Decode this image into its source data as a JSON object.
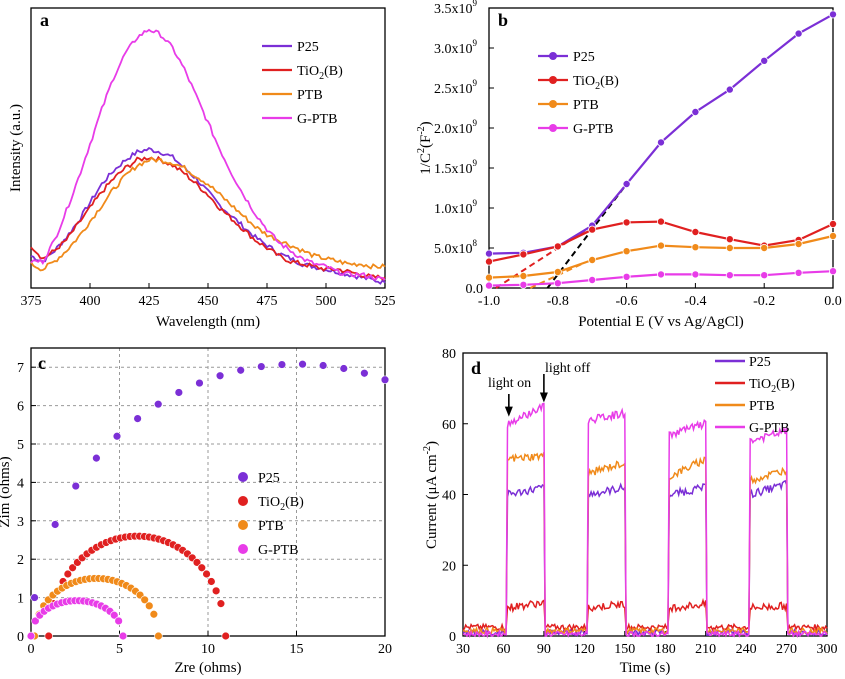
{
  "colors": {
    "P25": "#7b2fd6",
    "TiO2B": "#e02020",
    "PTB": "#f08a1a",
    "GPTB": "#e83ce8",
    "fit": "#000000"
  },
  "chart_data": [
    {
      "panel": "a",
      "type": "line",
      "xlabel": "Wavelength (nm)",
      "ylabel": "Intensity (a.u.)",
      "xlim": [
        375,
        525
      ],
      "ylim": [
        0,
        1
      ],
      "xticks": [
        "375",
        "400",
        "425",
        "450",
        "475",
        "500",
        "525"
      ],
      "legend_position": "top-right",
      "series": [
        {
          "name": "P25",
          "label_parts": [
            "P25"
          ],
          "color_key": "P25",
          "x": [
            375,
            380,
            385,
            390,
            395,
            400,
            405,
            410,
            415,
            420,
            425,
            430,
            435,
            440,
            445,
            450,
            455,
            460,
            465,
            470,
            475,
            480,
            485,
            490,
            495,
            500,
            505,
            510,
            515,
            520,
            525
          ],
          "y": [
            0.12,
            0.1,
            0.14,
            0.19,
            0.25,
            0.32,
            0.39,
            0.44,
            0.48,
            0.51,
            0.52,
            0.51,
            0.49,
            0.45,
            0.41,
            0.36,
            0.31,
            0.27,
            0.23,
            0.19,
            0.16,
            0.13,
            0.11,
            0.09,
            0.08,
            0.07,
            0.06,
            0.05,
            0.04,
            0.03,
            0.02
          ]
        },
        {
          "name": "TiO2(B)",
          "label_parts": [
            "TiO",
            "2",
            "(B)"
          ],
          "color_key": "TiO2B",
          "x": [
            375,
            380,
            385,
            390,
            395,
            400,
            405,
            410,
            415,
            420,
            425,
            430,
            435,
            440,
            445,
            450,
            455,
            460,
            465,
            470,
            475,
            480,
            485,
            490,
            495,
            500,
            505,
            510,
            515,
            520,
            525
          ],
          "y": [
            0.16,
            0.11,
            0.14,
            0.18,
            0.24,
            0.3,
            0.36,
            0.41,
            0.45,
            0.48,
            0.49,
            0.48,
            0.46,
            0.43,
            0.39,
            0.35,
            0.3,
            0.26,
            0.22,
            0.18,
            0.15,
            0.12,
            0.1,
            0.09,
            0.08,
            0.07,
            0.07,
            0.06,
            0.05,
            0.04,
            0.04
          ]
        },
        {
          "name": "PTB",
          "label_parts": [
            "PTB"
          ],
          "color_key": "PTB",
          "x": [
            375,
            380,
            385,
            390,
            395,
            400,
            405,
            410,
            415,
            420,
            425,
            430,
            435,
            440,
            445,
            450,
            455,
            460,
            465,
            470,
            475,
            480,
            485,
            490,
            495,
            500,
            505,
            510,
            515,
            520,
            525
          ],
          "y": [
            0.09,
            0.07,
            0.1,
            0.14,
            0.19,
            0.25,
            0.31,
            0.37,
            0.42,
            0.46,
            0.48,
            0.48,
            0.47,
            0.45,
            0.42,
            0.39,
            0.35,
            0.31,
            0.27,
            0.23,
            0.2,
            0.18,
            0.16,
            0.14,
            0.12,
            0.11,
            0.1,
            0.09,
            0.09,
            0.08,
            0.08
          ]
        },
        {
          "name": "G-PTB",
          "label_parts": [
            "G-PTB"
          ],
          "color_key": "GPTB",
          "x": [
            375,
            380,
            385,
            390,
            395,
            400,
            405,
            410,
            415,
            420,
            425,
            430,
            435,
            440,
            445,
            450,
            455,
            460,
            465,
            470,
            475,
            480,
            485,
            490,
            495,
            500,
            505,
            510,
            515,
            520,
            525
          ],
          "y": [
            0.1,
            0.1,
            0.18,
            0.29,
            0.41,
            0.54,
            0.67,
            0.79,
            0.88,
            0.94,
            0.97,
            0.95,
            0.9,
            0.82,
            0.72,
            0.62,
            0.52,
            0.43,
            0.35,
            0.28,
            0.22,
            0.17,
            0.14,
            0.11,
            0.09,
            0.08,
            0.06,
            0.05,
            0.05,
            0.04,
            0.03
          ]
        }
      ]
    },
    {
      "panel": "b",
      "type": "line",
      "xlabel": "Potential E (V vs Ag/AgCl)",
      "ylabel_parts": [
        "1/C",
        "2",
        "(F",
        "-2",
        ")"
      ],
      "xlim": [
        -1.0,
        0.0
      ],
      "ylim": [
        0,
        3.5
      ],
      "xticks": [
        {
          "v": -1.0,
          "t": "-1.0"
        },
        {
          "v": -0.8,
          "t": "-0.8"
        },
        {
          "v": -0.6,
          "t": "-0.6"
        },
        {
          "v": -0.4,
          "t": "-0.4"
        },
        {
          "v": -0.2,
          "t": "-0.2"
        },
        {
          "v": 0.0,
          "t": "0.0"
        }
      ],
      "yticks": [
        {
          "v": 0.0,
          "t": "0.0",
          "e": ""
        },
        {
          "v": 0.5,
          "t": "5.0x10",
          "e": "8"
        },
        {
          "v": 1.0,
          "t": "1.0x10",
          "e": "9"
        },
        {
          "v": 1.5,
          "t": "1.5x10",
          "e": "9"
        },
        {
          "v": 2.0,
          "t": "2.0x10",
          "e": "9"
        },
        {
          "v": 2.5,
          "t": "2.5x10",
          "e": "9"
        },
        {
          "v": 3.0,
          "t": "3.0x10",
          "e": "9"
        },
        {
          "v": 3.5,
          "t": "3.5x10",
          "e": "9"
        }
      ],
      "y_units_note": "values in units of 1e9 F^-2",
      "legend_position": "top-left",
      "series": [
        {
          "name": "P25",
          "label_parts": [
            "P25"
          ],
          "color_key": "P25",
          "x": [
            -1.0,
            -0.9,
            -0.8,
            -0.7,
            -0.6,
            -0.5,
            -0.4,
            -0.3,
            -0.2,
            -0.1,
            0.0
          ],
          "y": [
            0.43,
            0.44,
            0.52,
            0.78,
            1.3,
            1.82,
            2.2,
            2.48,
            2.84,
            3.18,
            3.42
          ]
        },
        {
          "name": "TiO2(B)",
          "label_parts": [
            "TiO",
            "2",
            "(B)"
          ],
          "color_key": "TiO2B",
          "x": [
            -1.0,
            -0.9,
            -0.8,
            -0.7,
            -0.6,
            -0.5,
            -0.4,
            -0.3,
            -0.2,
            -0.1,
            0.0
          ],
          "y": [
            0.33,
            0.42,
            0.52,
            0.73,
            0.82,
            0.83,
            0.7,
            0.61,
            0.53,
            0.6,
            0.8
          ]
        },
        {
          "name": "PTB",
          "label_parts": [
            "PTB"
          ],
          "color_key": "PTB",
          "x": [
            -1.0,
            -0.9,
            -0.8,
            -0.7,
            -0.6,
            -0.5,
            -0.4,
            -0.3,
            -0.2,
            -0.1,
            0.0
          ],
          "y": [
            0.13,
            0.15,
            0.2,
            0.35,
            0.46,
            0.53,
            0.51,
            0.5,
            0.5,
            0.55,
            0.65
          ]
        },
        {
          "name": "G-PTB",
          "label_parts": [
            "G-PTB"
          ],
          "color_key": "GPTB",
          "x": [
            -1.0,
            -0.9,
            -0.8,
            -0.7,
            -0.6,
            -0.5,
            -0.4,
            -0.3,
            -0.2,
            -0.1,
            0.0
          ],
          "y": [
            0.03,
            0.04,
            0.06,
            0.1,
            0.14,
            0.17,
            0.17,
            0.16,
            0.16,
            0.19,
            0.21
          ]
        }
      ],
      "fits": [
        {
          "name": "P25 fit",
          "color_key": "fit",
          "x": [
            -0.83,
            -0.6
          ],
          "y": [
            0.0,
            1.3
          ]
        },
        {
          "name": "TiO2(B) fit",
          "color_key": "TiO2B",
          "x": [
            -0.98,
            -0.72
          ],
          "y": [
            0.0,
            0.72
          ]
        },
        {
          "name": "PTB fit",
          "color_key": "PTB",
          "x": [
            -0.88,
            -0.72
          ],
          "y": [
            0.0,
            0.32
          ]
        }
      ]
    },
    {
      "panel": "c",
      "type": "scatter",
      "xlabel": "Zre (ohms)",
      "ylabel": "Zim (ohms)",
      "xlim": [
        0,
        20
      ],
      "ylim": [
        0,
        7.5
      ],
      "xticks": [
        "0",
        "5",
        "10",
        "15",
        "20"
      ],
      "yticks": [
        "0",
        "1",
        "2",
        "3",
        "4",
        "5",
        "6",
        "7"
      ],
      "grid": true,
      "legend_position": "middle",
      "series": [
        {
          "name": "P25",
          "label_parts": [
            "P25"
          ],
          "color_key": "P25",
          "model": "semicircle",
          "center": 15.0,
          "radius": 14.95,
          "height": 7.08,
          "x_from": 0.2,
          "x_to": 20.0,
          "points": 18
        },
        {
          "name": "TiO2(B)",
          "label_parts": [
            "TiO",
            "2",
            "(B)"
          ],
          "color_key": "TiO2B",
          "model": "semicircle",
          "center": 6.0,
          "radius": 5.0,
          "height": 2.6,
          "x_from": 1.0,
          "x_to": 11.0,
          "points": 38
        },
        {
          "name": "PTB",
          "label_parts": [
            "PTB"
          ],
          "color_key": "PTB",
          "model": "semicircle",
          "center": 3.7,
          "radius": 3.5,
          "height": 1.5,
          "x_from": 0.2,
          "x_to": 7.2,
          "points": 28
        },
        {
          "name": "G-PTB",
          "label_parts": [
            "G-PTB"
          ],
          "color_key": "GPTB",
          "model": "semicircle",
          "center": 2.6,
          "radius": 2.6,
          "height": 0.92,
          "x_from": 0.0,
          "x_to": 5.2,
          "points": 22
        }
      ]
    },
    {
      "panel": "d",
      "type": "line",
      "xlabel": "Time (s)",
      "ylabel_parts": [
        "Current (μA cm",
        "-2",
        ")"
      ],
      "xlim": [
        30,
        300
      ],
      "ylim": [
        0,
        80
      ],
      "xticks": [
        "30",
        "60",
        "90",
        "120",
        "150",
        "180",
        "210",
        "240",
        "270",
        "300"
      ],
      "yticks": [
        "0",
        "20",
        "40",
        "60",
        "80"
      ],
      "legend_position": "top-right",
      "annotations": [
        {
          "text": "light on",
          "arrow_x": 64,
          "arrow_y": 62
        },
        {
          "text": "light off",
          "arrow_x": 90,
          "arrow_y": 66
        }
      ],
      "light_periods": [
        [
          63,
          90
        ],
        [
          123,
          150
        ],
        [
          183,
          210
        ],
        [
          243,
          270
        ]
      ],
      "series": [
        {
          "name": "P25",
          "label_parts": [
            "P25"
          ],
          "color_key": "P25",
          "dark": 1.0,
          "on_start": [
            40,
            40,
            40,
            40
          ],
          "on_end": [
            42,
            42,
            42,
            43
          ]
        },
        {
          "name": "TiO2(B)",
          "label_parts": [
            "TiO",
            "2",
            "(B)"
          ],
          "color_key": "TiO2B",
          "dark": 2.5,
          "on_start": [
            8,
            8,
            8,
            8
          ],
          "on_end": [
            9.5,
            9,
            9,
            8.5
          ]
        },
        {
          "name": "PTB",
          "label_parts": [
            "PTB"
          ],
          "color_key": "PTB",
          "dark": 1.5,
          "on_start": [
            50,
            46,
            45,
            44
          ],
          "on_end": [
            51,
            49,
            50,
            47
          ]
        },
        {
          "name": "G-PTB",
          "label_parts": [
            "G-PTB"
          ],
          "color_key": "GPTB",
          "dark": 0.5,
          "on_start": [
            60,
            61,
            57,
            55
          ],
          "on_end": [
            65,
            63,
            60,
            58
          ]
        }
      ]
    }
  ]
}
